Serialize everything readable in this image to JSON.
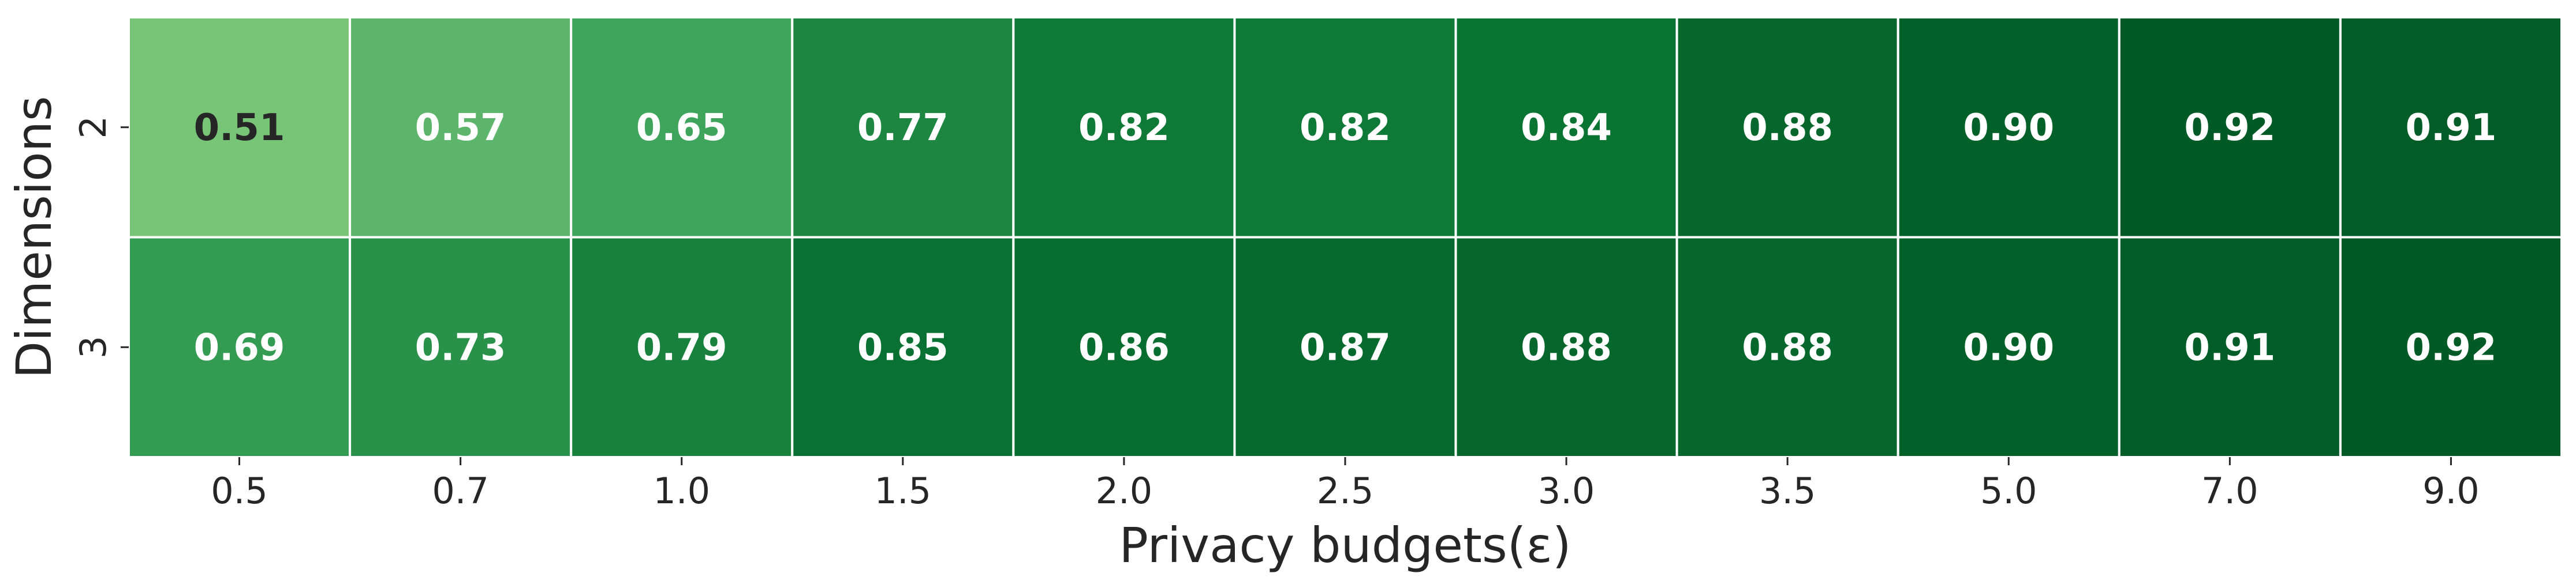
{
  "chart_data": {
    "type": "heatmap",
    "x_categories": [
      "0.5",
      "0.7",
      "1.0",
      "1.5",
      "2.0",
      "2.5",
      "3.0",
      "3.5",
      "5.0",
      "7.0",
      "9.0"
    ],
    "y_categories": [
      "2",
      "3"
    ],
    "values": [
      [
        0.51,
        0.57,
        0.65,
        0.77,
        0.82,
        0.82,
        0.84,
        0.88,
        0.9,
        0.92,
        0.91
      ],
      [
        0.69,
        0.73,
        0.79,
        0.85,
        0.86,
        0.87,
        0.88,
        0.88,
        0.9,
        0.91,
        0.92
      ]
    ],
    "value_labels": [
      [
        "0.51",
        "0.57",
        "0.65",
        "0.77",
        "0.82",
        "0.82",
        "0.84",
        "0.88",
        "0.90",
        "0.92",
        "0.91"
      ],
      [
        "0.69",
        "0.73",
        "0.79",
        "0.85",
        "0.86",
        "0.87",
        "0.88",
        "0.88",
        "0.90",
        "0.91",
        "0.92"
      ]
    ],
    "xlabel": "Privacy budgets(ε)",
    "ylabel": "Dimensions",
    "colormap": "Greens",
    "value_range": [
      0.51,
      0.92
    ],
    "colors": {
      "cell_border": "#ffffff",
      "light_text": "#ffffff",
      "dark_text": "#262626"
    }
  }
}
